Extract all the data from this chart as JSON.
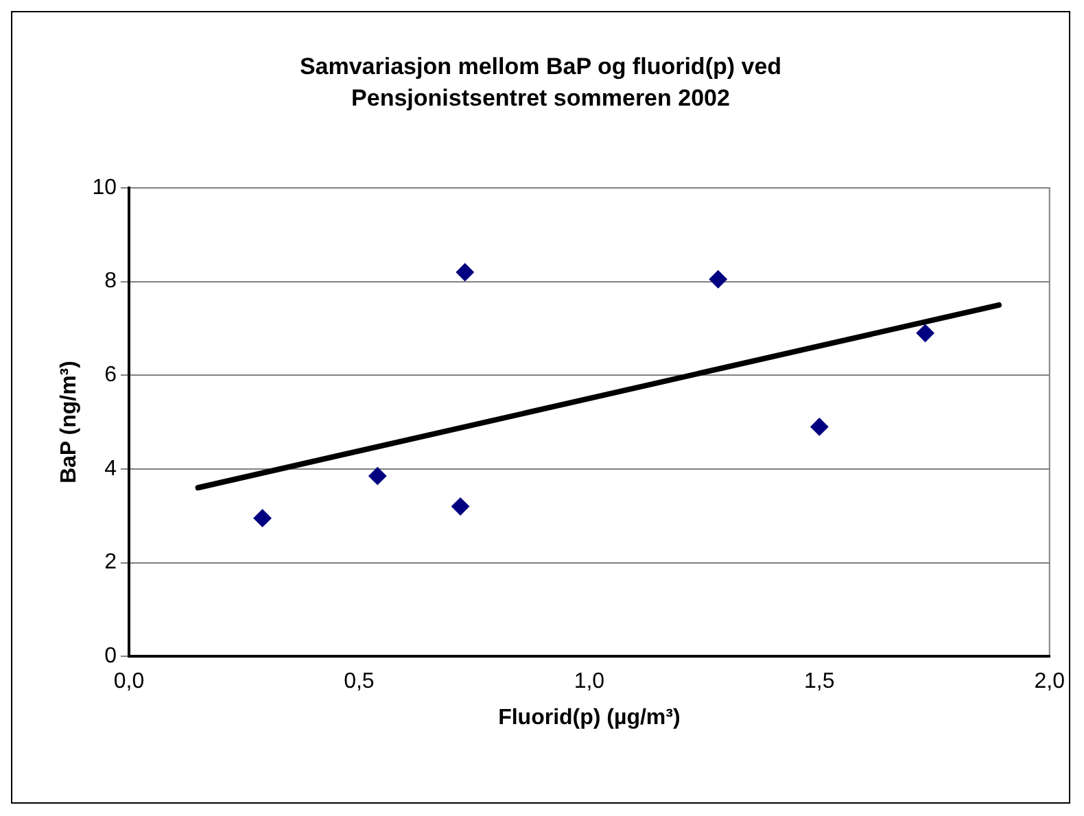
{
  "chart_data": {
    "type": "scatter",
    "title": "Samvariasjon mellom BaP og fluorid(p) ved Pensjonistsentret sommeren 2002",
    "xlabel": "Fluorid(p) (µg/m³)",
    "ylabel": "BaP (ng/m³)",
    "series": [
      {
        "color": "#000080",
        "marker": "diamond",
        "x": [
          0.29,
          0.54,
          0.73,
          0.72,
          1.28,
          1.5,
          1.73
        ],
        "values": [
          2.95,
          3.85,
          8.2,
          3.2,
          8.05,
          4.9,
          6.9
        ]
      },
      {
        "type": "line",
        "color": "#000000",
        "marker": "none",
        "x": [
          0.15,
          1.89
        ],
        "values": [
          3.6,
          7.5
        ]
      }
    ],
    "xlim": [
      0,
      2
    ],
    "xticks": [
      {
        "value": 0,
        "label": "0,0"
      },
      {
        "value": 0.5,
        "label": "0,5"
      },
      {
        "value": 1,
        "label": "1,0"
      },
      {
        "value": 1.5,
        "label": "1,5"
      },
      {
        "value": 2,
        "label": "2,0"
      }
    ],
    "ylim": [
      0,
      10
    ],
    "yticks": [
      0,
      2,
      4,
      6,
      8,
      10
    ],
    "grid": "y",
    "legend": false
  }
}
